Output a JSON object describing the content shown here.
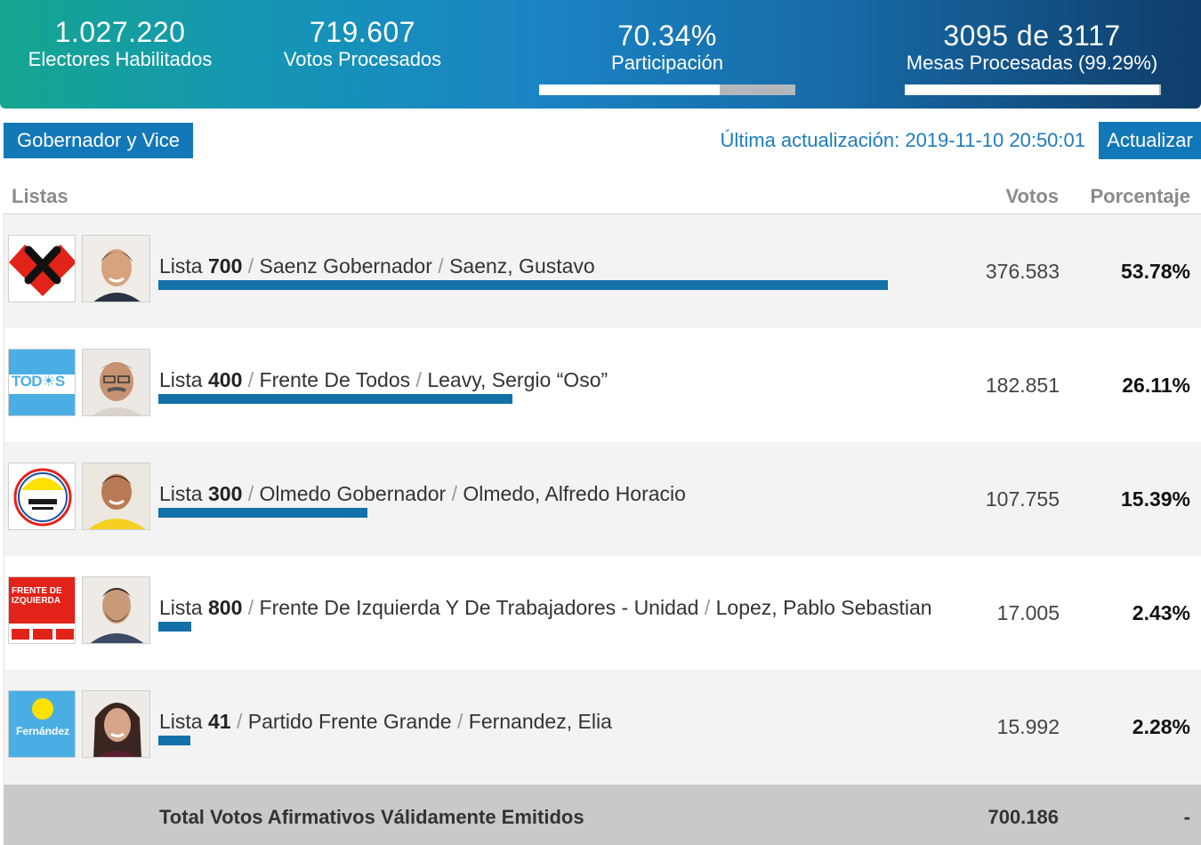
{
  "stats": {
    "electores": {
      "value": "1.027.220",
      "label": "Electores Habilitados"
    },
    "votos": {
      "value": "719.607",
      "label": "Votos Procesados"
    },
    "participacion": {
      "value": "70.34%",
      "label": "Participación",
      "progress_pct": 70.34
    },
    "mesas": {
      "value": "3095 de 3117",
      "label": "Mesas Procesadas (99.29%)",
      "progress_pct": 99.29
    }
  },
  "toolbar": {
    "tab_label": "Gobernador y Vice",
    "last_update": "Última actualización: 2019-11-10 20:50:01",
    "update_button": "Actualizar"
  },
  "table": {
    "headers": {
      "listas": "Listas",
      "votos": "Votos",
      "porcentaje": "Porcentaje"
    },
    "rows": [
      {
        "lista_prefix": "Lista",
        "lista_num": "700",
        "party": "Saenz Gobernador",
        "candidate": "Saenz, Gustavo",
        "votes": "376.583",
        "percent": "53.78%",
        "percent_value": 53.78,
        "logo": "heart-x-logo-icon"
      },
      {
        "lista_prefix": "Lista",
        "lista_num": "400",
        "party": "Frente De Todos",
        "candidate": "Leavy, Sergio “Oso”",
        "votes": "182.851",
        "percent": "26.11%",
        "percent_value": 26.11,
        "logo": "todos-logo-icon",
        "logo_text": "TOD☀S"
      },
      {
        "lista_prefix": "Lista",
        "lista_num": "300",
        "party": "Olmedo Gobernador",
        "candidate": "Olmedo, Alfredo Horacio",
        "votes": "107.755",
        "percent": "15.39%",
        "percent_value": 15.39,
        "logo": "olmedo-logo-icon"
      },
      {
        "lista_prefix": "Lista",
        "lista_num": "800",
        "party": "Frente De Izquierda Y De Trabajadores - Unidad",
        "candidate": "Lopez, Pablo Sebastian",
        "votes": "17.005",
        "percent": "2.43%",
        "percent_value": 2.43,
        "logo": "fit-logo-icon",
        "logo_text": "FRENTE DE IZQUIERDA"
      },
      {
        "lista_prefix": "Lista",
        "lista_num": "41",
        "party": "Partido Frente Grande",
        "candidate": "Fernandez, Elia",
        "votes": "15.992",
        "percent": "2.28%",
        "percent_value": 2.28,
        "logo": "fernandez-logo-icon",
        "logo_text": "Fernández"
      }
    ],
    "total": {
      "label": "Total Votos Afirmativos Válidamente Emitidos",
      "votes": "700.186",
      "percent": "-"
    }
  },
  "colors": {
    "accent": "#1378b8",
    "bar": "#1470a8",
    "link_text": "#1d7cc0"
  }
}
